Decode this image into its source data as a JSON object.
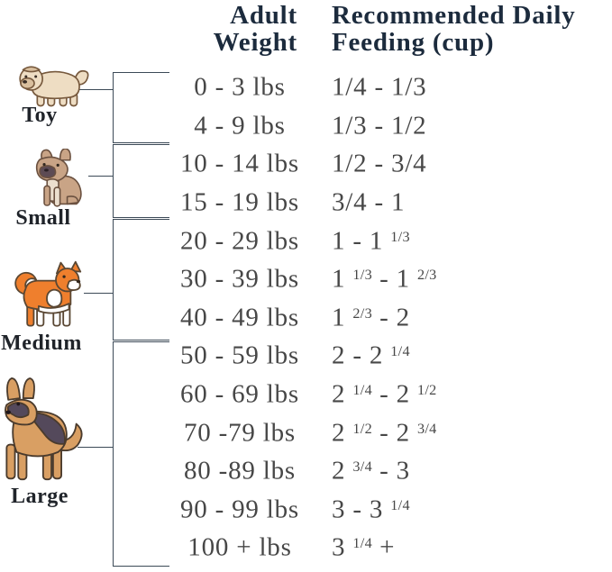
{
  "header": {
    "weight_line1": "Adult",
    "weight_line2": "Weight",
    "feeding_line1": "Recommended Daily",
    "feeding_line2": "Feeding (cup)"
  },
  "groups": [
    {
      "label": "Toy",
      "icon": "shih-tzu-icon"
    },
    {
      "label": "Small",
      "icon": "french-bulldog-icon"
    },
    {
      "label": "Medium",
      "icon": "shiba-inu-icon"
    },
    {
      "label": "Large",
      "icon": "german-shepherd-icon"
    }
  ],
  "table": {
    "rows": [
      {
        "group": "Toy",
        "weight": "0 - 3 lbs",
        "feeding": "1/4 - 1/3"
      },
      {
        "group": "Toy",
        "weight": "4 - 9 lbs",
        "feeding": "1/3 - 1/2"
      },
      {
        "group": "Small",
        "weight": "10 - 14 lbs",
        "feeding": "1/2 - 3/4"
      },
      {
        "group": "Small",
        "weight": "15 - 19 lbs",
        "feeding": "3/4 - 1"
      },
      {
        "group": "Medium",
        "weight": "20 - 29 lbs",
        "feeding": "1 - 1 |1/3|"
      },
      {
        "group": "Medium",
        "weight": "30 - 39 lbs",
        "feeding": "1 |1/3| - 1 |2/3|"
      },
      {
        "group": "Medium",
        "weight": "40 - 49 lbs",
        "feeding": "1 |2/3| - 2"
      },
      {
        "group": "Large",
        "weight": "50 - 59 lbs",
        "feeding": "2 - 2 |1/4|"
      },
      {
        "group": "Large",
        "weight": "60 - 69 lbs",
        "feeding": "2 |1/4| - 2 |1/2|"
      },
      {
        "group": "Large",
        "weight": "70 -79 lbs",
        "feeding": "2 |1/2| - 2 |3/4|"
      },
      {
        "group": "Large",
        "weight": "80 -89 lbs",
        "feeding": "2 |3/4| - 3"
      },
      {
        "group": "Large",
        "weight": "90 - 99 lbs",
        "feeding": "3 - 3 |1/4|"
      },
      {
        "group": "Large",
        "weight": "100 + lbs",
        "feeding": "3 |1/4| +"
      }
    ]
  },
  "colors": {
    "header_text": "#1c2b3d",
    "row_text": "#474747",
    "label_text": "#20242a",
    "bracket_line": "#3c4a57",
    "shih_tzu_cream": "#eeddc3",
    "bulldog_tan": "#c9a486",
    "shiba_orange": "#ef7f2d",
    "shepherd_tan": "#d99f63",
    "shepherd_dark": "#54495b"
  },
  "chart_data": {
    "type": "table",
    "title": "Dog Feeding Guide by Adult Weight",
    "columns": [
      "Adult Weight",
      "Recommended Daily Feeding (cup)"
    ],
    "groups": [
      {
        "size": "Toy",
        "rows": [
          [
            "0 - 3 lbs",
            "1/4 - 1/3"
          ],
          [
            "4 - 9 lbs",
            "1/3 - 1/2"
          ]
        ]
      },
      {
        "size": "Small",
        "rows": [
          [
            "10 - 14 lbs",
            "1/2 - 3/4"
          ],
          [
            "15 - 19 lbs",
            "3/4 - 1"
          ]
        ]
      },
      {
        "size": "Medium",
        "rows": [
          [
            "20 - 29 lbs",
            "1 - 1 1/3"
          ],
          [
            "30 - 39 lbs",
            "1 1/3 - 1 2/3"
          ],
          [
            "40 - 49 lbs",
            "1 2/3 - 2"
          ]
        ]
      },
      {
        "size": "Large",
        "rows": [
          [
            "50 - 59 lbs",
            "2 - 2 1/4"
          ],
          [
            "60 - 69 lbs",
            "2 1/4 - 2 1/2"
          ],
          [
            "70 -79 lbs",
            "2 1/2 - 2 3/4"
          ],
          [
            "80 -89 lbs",
            "2 3/4 - 3"
          ],
          [
            "90 - 99 lbs",
            "3 - 3 1/4"
          ],
          [
            "100 + lbs",
            "3 1/4 +"
          ]
        ]
      }
    ]
  }
}
